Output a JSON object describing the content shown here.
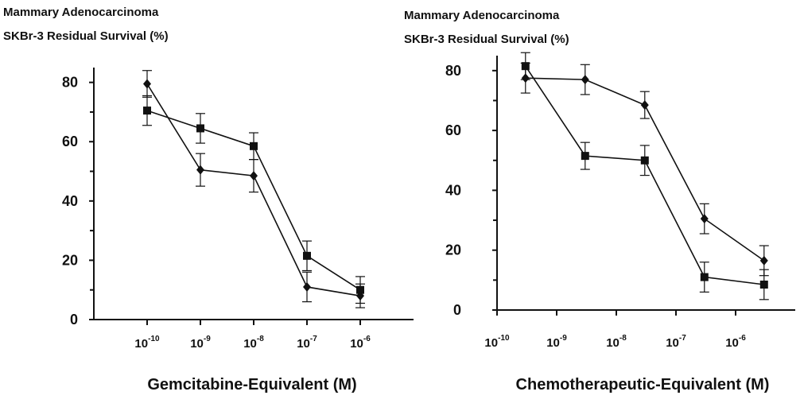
{
  "chart_data": [
    {
      "type": "line",
      "title_lines": [
        "Mammary Adenocarcinoma",
        "SKBr-3 Residual Survival (%)"
      ],
      "xlabel": "Gemcitabine-Equivalent (M)",
      "ylabel": "",
      "x_scale": "log",
      "xlim": [
        1e-11,
        1e-05
      ],
      "ylim": [
        0,
        85
      ],
      "yticks": [
        0,
        20,
        40,
        60,
        80
      ],
      "yticks_minor": [
        10,
        30,
        50,
        70
      ],
      "xticks": [
        {
          "value": 1e-10,
          "base": "10",
          "exp": "-10"
        },
        {
          "value": 1e-09,
          "base": "10",
          "exp": "-9"
        },
        {
          "value": 1e-08,
          "base": "10",
          "exp": "-8"
        },
        {
          "value": 1e-07,
          "base": "10",
          "exp": "-7"
        },
        {
          "value": 1e-06,
          "base": "10",
          "exp": "-6"
        }
      ],
      "grid": false,
      "color": "#111111",
      "series": [
        {
          "marker": "square",
          "x": [
            1e-10,
            1e-09,
            1e-08,
            1e-07,
            1e-06
          ],
          "y": [
            70.5,
            64.5,
            58.5,
            21.5,
            10
          ],
          "err": [
            5,
            5,
            4.5,
            5,
            4.5
          ]
        },
        {
          "marker": "diamond",
          "x": [
            1e-10,
            1e-09,
            1e-08,
            1e-07,
            1e-06
          ],
          "y": [
            79.5,
            50.5,
            48.5,
            11,
            8
          ],
          "err": [
            4.5,
            5.5,
            5.5,
            5,
            4
          ]
        }
      ]
    },
    {
      "type": "line",
      "title_lines": [
        "Mammary Adenocarcinoma",
        "SKBr-3 Residual Survival (%)"
      ],
      "xlabel": "Chemotherapeutic-Equivalent (M)",
      "ylabel": "",
      "x_scale": "log",
      "xlim": [
        1e-10,
        1e-05
      ],
      "ylim": [
        0,
        85
      ],
      "yticks": [
        0,
        20,
        40,
        60,
        80
      ],
      "yticks_minor": [
        10,
        30,
        50,
        70
      ],
      "xticks": [
        {
          "value": 1e-10,
          "base": "10",
          "exp": "-10"
        },
        {
          "value": 1e-09,
          "base": "10",
          "exp": "-9"
        },
        {
          "value": 1e-08,
          "base": "10",
          "exp": "-8"
        },
        {
          "value": 1e-07,
          "base": "10",
          "exp": "-7"
        },
        {
          "value": 1e-06,
          "base": "10",
          "exp": "-6"
        }
      ],
      "grid": false,
      "color": "#111111",
      "series": [
        {
          "marker": "square",
          "x": [
            3e-10,
            3e-09,
            3e-08,
            3e-07,
            3e-06
          ],
          "y": [
            81.5,
            51.5,
            50,
            11,
            8.5
          ],
          "err": [
            4.5,
            4.5,
            5,
            5,
            5
          ]
        },
        {
          "marker": "diamond",
          "x": [
            3e-10,
            3e-09,
            3e-08,
            3e-07,
            3e-06
          ],
          "y": [
            77.5,
            77,
            68.5,
            30.5,
            16.5
          ],
          "err": [
            5,
            5,
            4.5,
            5,
            5
          ]
        }
      ]
    }
  ]
}
